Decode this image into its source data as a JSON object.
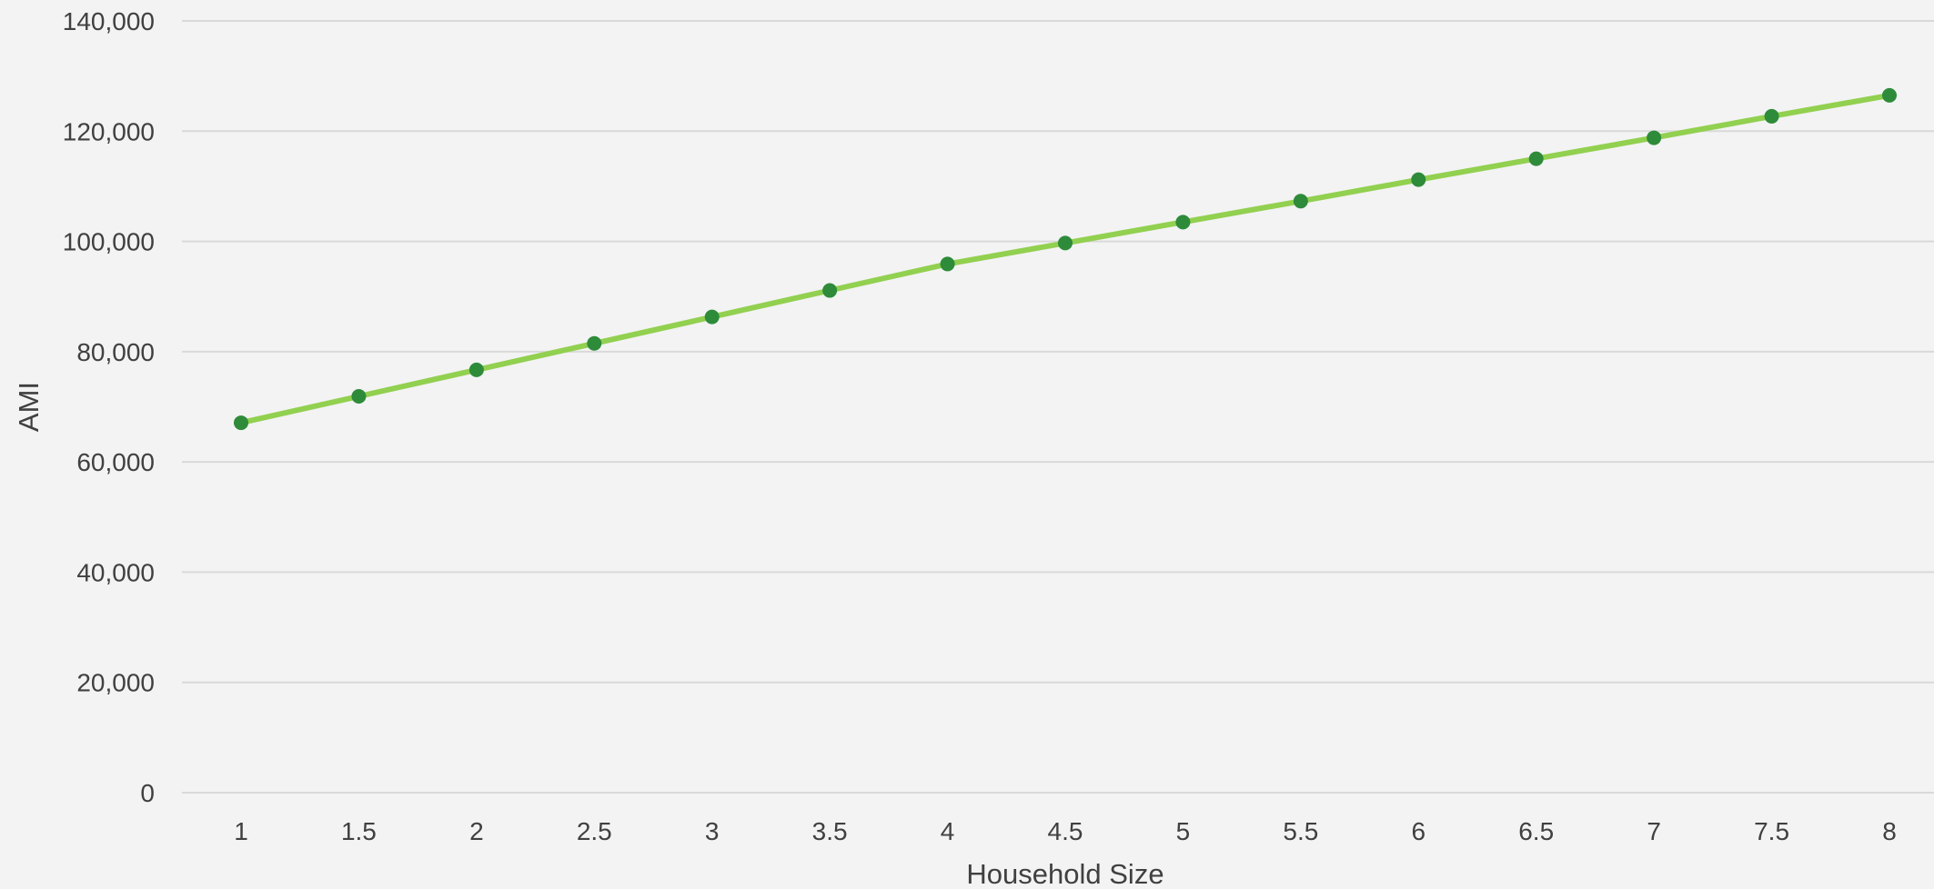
{
  "chart_data": {
    "type": "line",
    "title": "",
    "xlabel": "Household Size",
    "ylabel": "AMI",
    "x": [
      1,
      1.5,
      2,
      2.5,
      3,
      3.5,
      4,
      4.5,
      5,
      5.5,
      6,
      6.5,
      7,
      7.5,
      8
    ],
    "x_tick_labels": [
      "1",
      "1.5",
      "2",
      "2.5",
      "3",
      "3.5",
      "4",
      "4.5",
      "5",
      "5.5",
      "6",
      "6.5",
      "7",
      "7.5",
      "8"
    ],
    "y_ticks": [
      0,
      20000,
      40000,
      60000,
      80000,
      100000,
      120000,
      140000
    ],
    "y_tick_labels": [
      "0",
      "20,000",
      "40,000",
      "60,000",
      "80,000",
      "100,000",
      "120,000",
      "140,000"
    ],
    "ylim": [
      0,
      140000
    ],
    "grid": true,
    "legend": "none",
    "series": [
      {
        "values": [
          67100,
          71900,
          76700,
          81500,
          86300,
          91100,
          95900,
          99700,
          103500,
          107300,
          111200,
          115000,
          118800,
          122700,
          126500
        ],
        "line_color": "#92d050",
        "marker_color": "#2e8b3a"
      }
    ]
  }
}
